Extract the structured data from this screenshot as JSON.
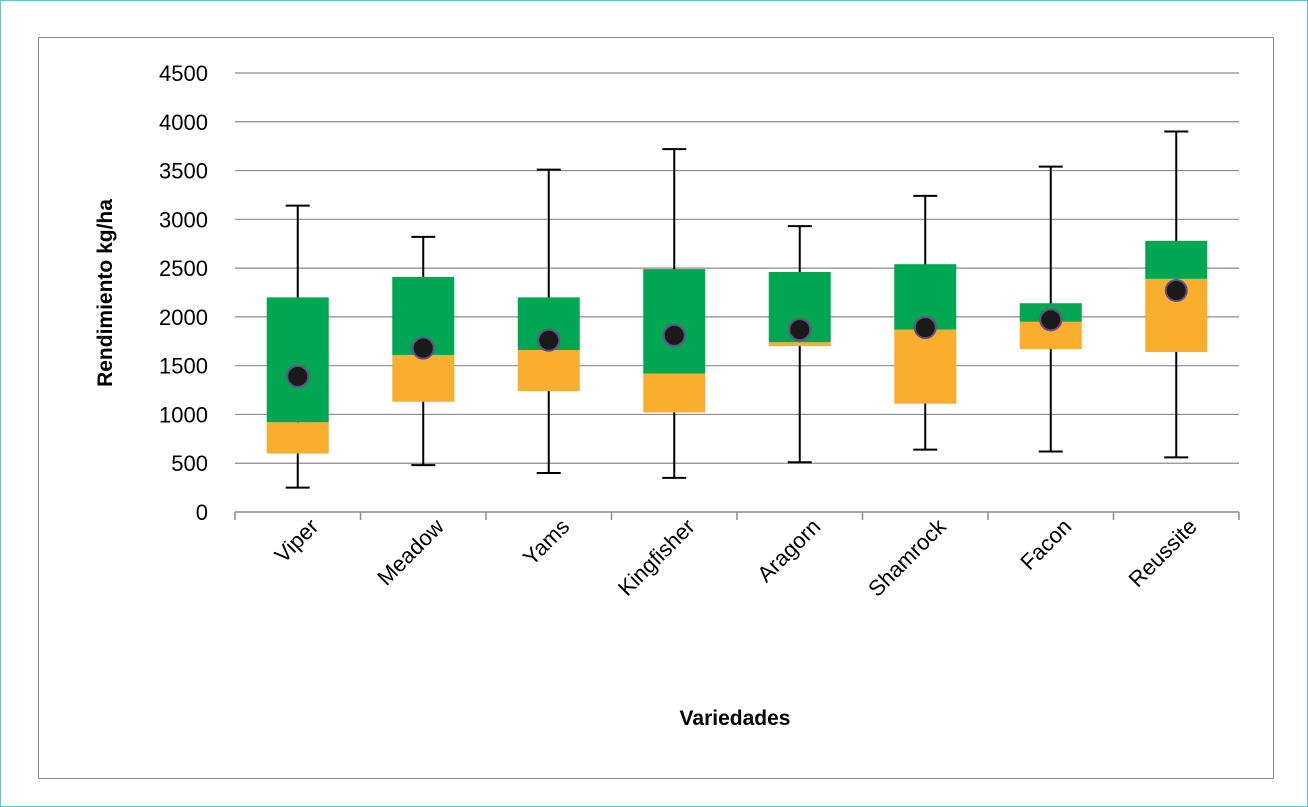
{
  "chart_data": {
    "type": "box",
    "xlabel": "Variedades",
    "ylabel": "Rendimiento  kg/ha",
    "ylim": [
      0,
      4500
    ],
    "yticks": [
      0,
      500,
      1000,
      1500,
      2000,
      2500,
      3000,
      3500,
      4000,
      4500
    ],
    "grid": true,
    "colors": {
      "upper_box": "#00a651",
      "lower_box": "#f9ae2d",
      "mean_marker": "#1a1a1a",
      "mean_marker_outline": "#6b4c8a",
      "whisker": "#000000",
      "grid": "#8c8c8c"
    },
    "categories": [
      "Viper",
      "Meadow",
      "Yams",
      "Kingfisher",
      "Aragorn",
      "Shamrock",
      "Facon",
      "Reussite"
    ],
    "series": [
      {
        "min": 250,
        "q1": 600,
        "median": 920,
        "q3": 2200,
        "max": 3140,
        "mean": 1390
      },
      {
        "min": 480,
        "q1": 1130,
        "median": 1610,
        "q3": 2410,
        "max": 2820,
        "mean": 1680
      },
      {
        "min": 400,
        "q1": 1240,
        "median": 1660,
        "q3": 2200,
        "max": 3510,
        "mean": 1760
      },
      {
        "min": 350,
        "q1": 1020,
        "median": 1420,
        "q3": 2490,
        "max": 3720,
        "mean": 1810
      },
      {
        "min": 510,
        "q1": 1700,
        "median": 1740,
        "q3": 2460,
        "max": 2930,
        "mean": 1870
      },
      {
        "min": 640,
        "q1": 1110,
        "median": 1870,
        "q3": 2540,
        "max": 3240,
        "mean": 1890
      },
      {
        "min": 620,
        "q1": 1670,
        "median": 1950,
        "q3": 2140,
        "max": 3540,
        "mean": 1970
      },
      {
        "min": 560,
        "q1": 1640,
        "median": 2390,
        "q3": 2780,
        "max": 3900,
        "mean": 2270
      }
    ]
  }
}
